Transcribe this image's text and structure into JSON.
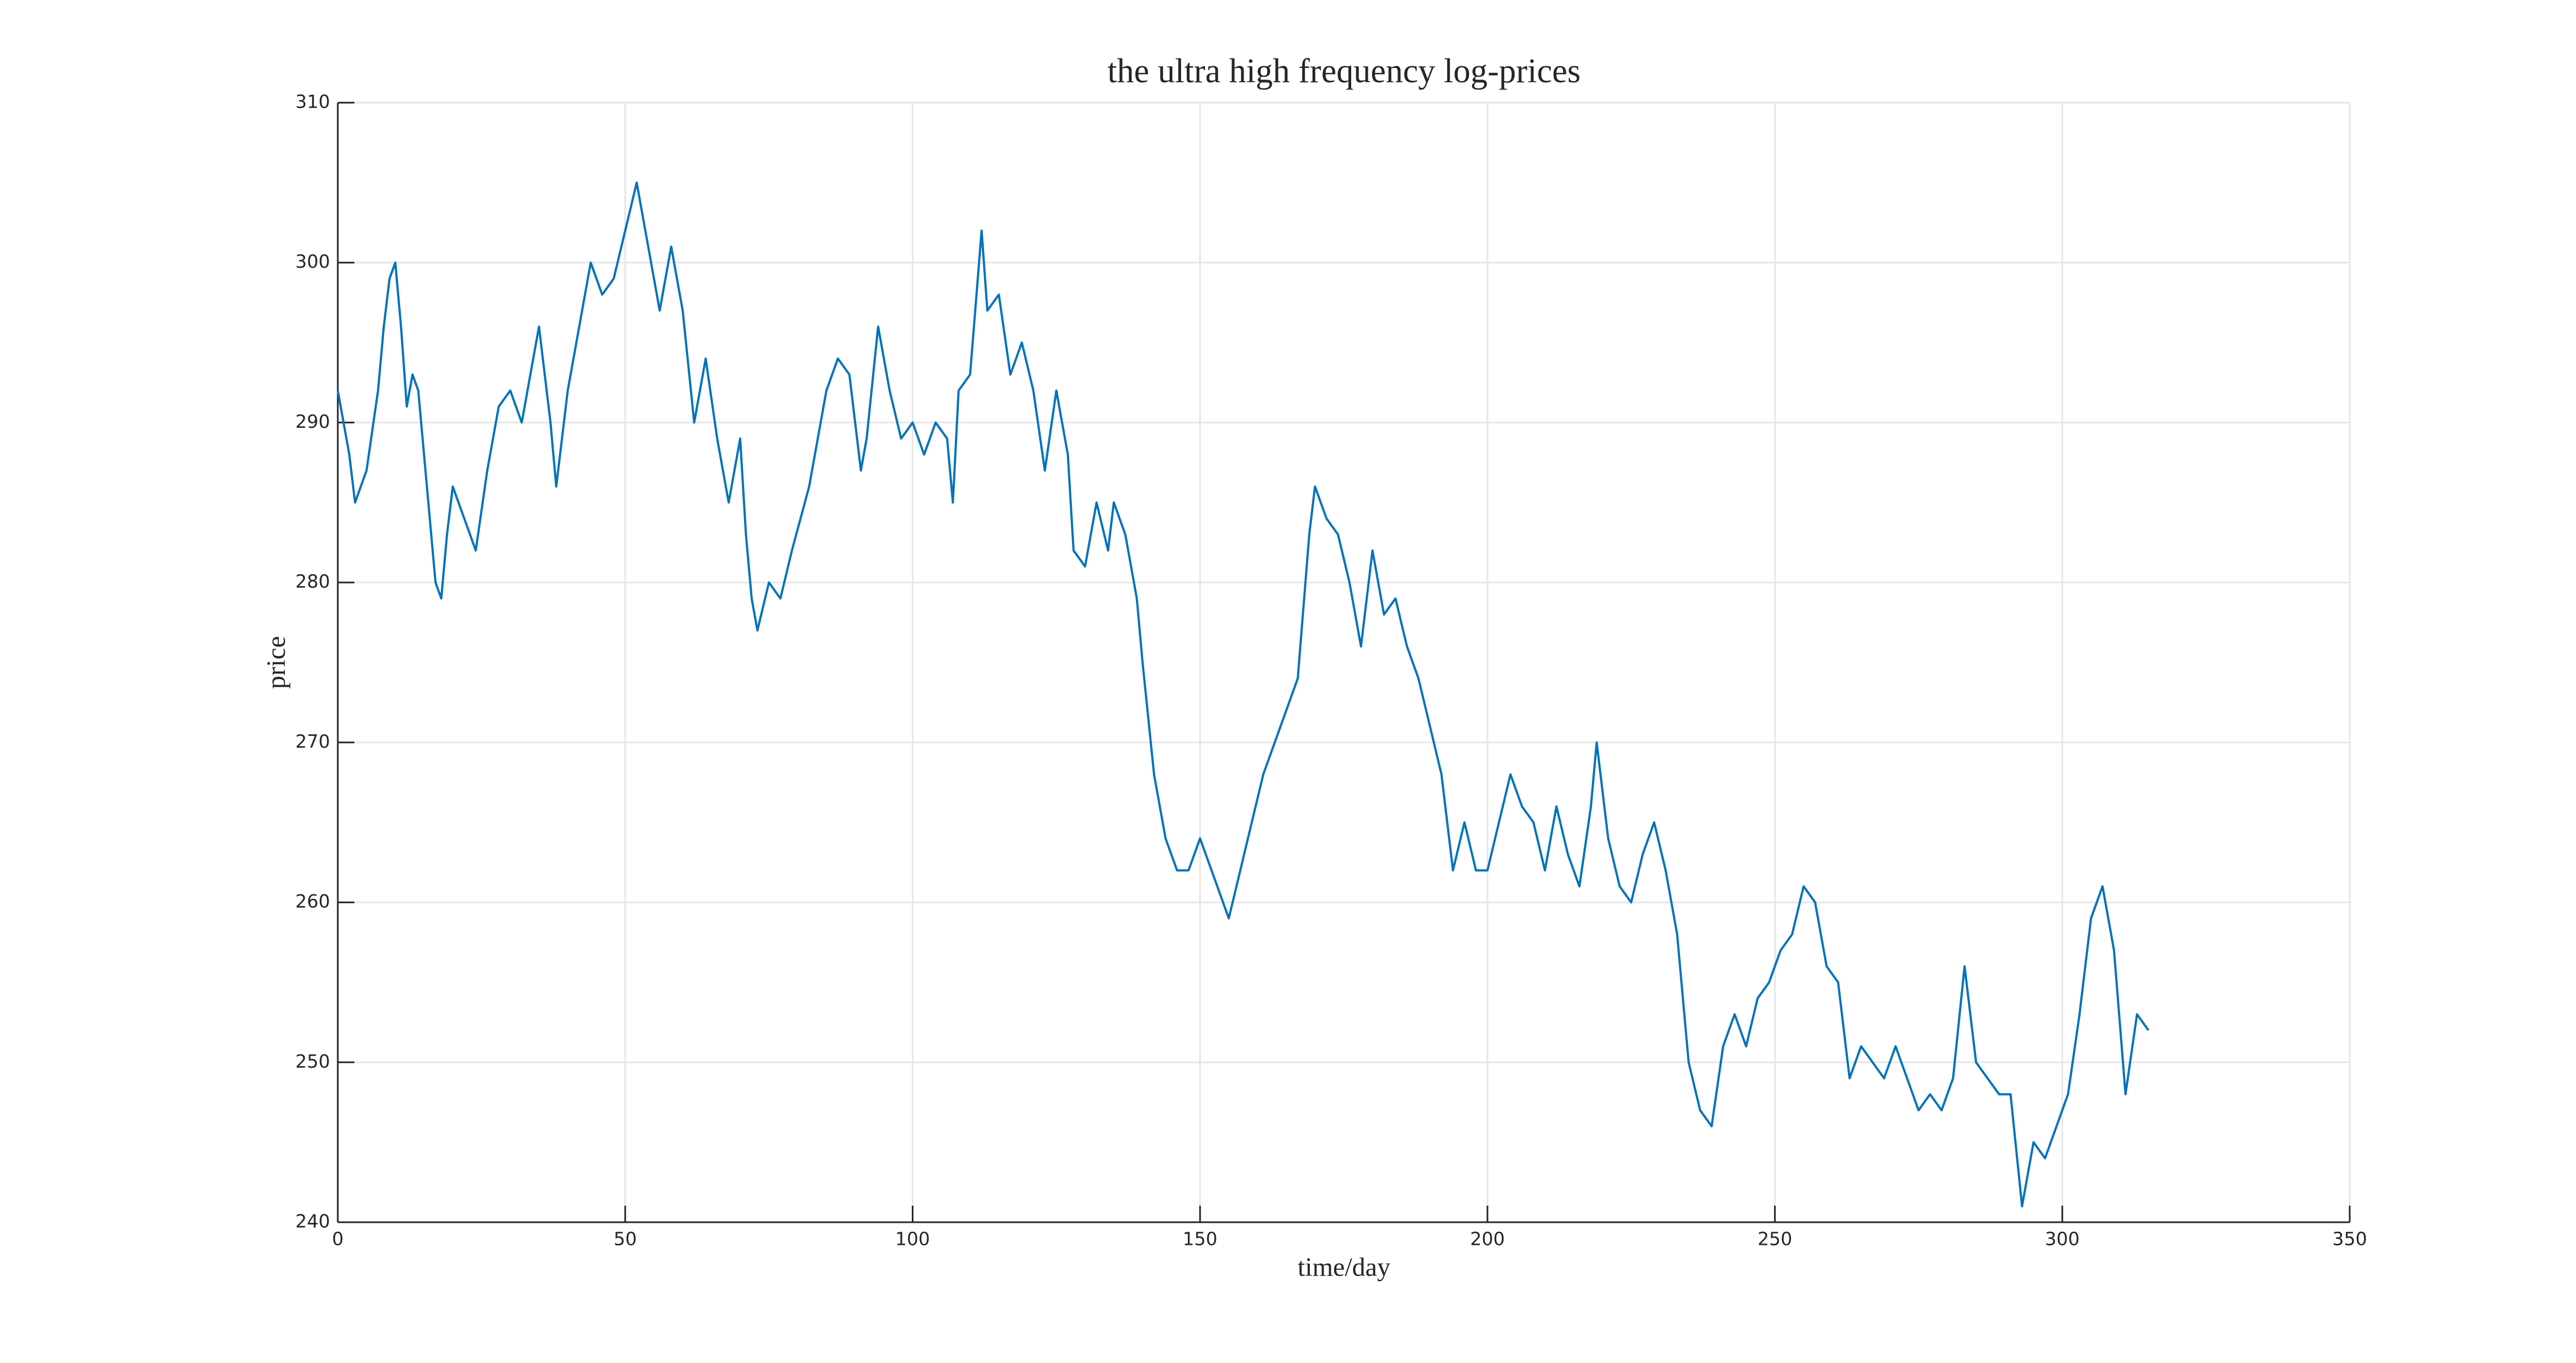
{
  "chart_data": {
    "type": "line",
    "title": "the ultra high frequency log-prices",
    "xlabel": "time/day",
    "ylabel": "price",
    "x": [
      0,
      2,
      3,
      5,
      7,
      8,
      9,
      10,
      11,
      12,
      13,
      14,
      15,
      16,
      17,
      18,
      19,
      20,
      22,
      24,
      26,
      28,
      30,
      32,
      34,
      35,
      37,
      38,
      40,
      42,
      44,
      46,
      48,
      50,
      52,
      54,
      56,
      58,
      60,
      62,
      64,
      66,
      68,
      70,
      71,
      72,
      73,
      75,
      77,
      79,
      82,
      85,
      87,
      89,
      91,
      92,
      94,
      96,
      98,
      100,
      102,
      104,
      106,
      107,
      108,
      110,
      112,
      113,
      115,
      117,
      119,
      121,
      123,
      125,
      127,
      128,
      130,
      132,
      134,
      135,
      137,
      139,
      140,
      142,
      144,
      146,
      148,
      150,
      152,
      154,
      155,
      157,
      159,
      161,
      163,
      165,
      167,
      169,
      170,
      172,
      174,
      176,
      178,
      180,
      182,
      184,
      186,
      188,
      190,
      192,
      194,
      196,
      198,
      200,
      202,
      204,
      206,
      208,
      210,
      212,
      214,
      216,
      218,
      219,
      221,
      223,
      225,
      227,
      229,
      231,
      233,
      235,
      237,
      239,
      241,
      243,
      245,
      247,
      249,
      251,
      253,
      255,
      257,
      259,
      261,
      263,
      265,
      267,
      269,
      271,
      273,
      275,
      277,
      279,
      281,
      283,
      285,
      287,
      289,
      291,
      293,
      295,
      297,
      299,
      301,
      303,
      305,
      307,
      309,
      311,
      313,
      315
    ],
    "values": [
      292,
      288,
      285,
      287,
      292,
      296,
      299,
      300,
      296,
      291,
      293,
      292,
      288,
      284,
      280,
      279,
      283,
      286,
      284,
      282,
      287,
      291,
      292,
      290,
      294,
      296,
      290,
      286,
      292,
      296,
      300,
      298,
      299,
      302,
      305,
      301,
      297,
      301,
      297,
      290,
      294,
      289,
      285,
      289,
      283,
      279,
      277,
      280,
      279,
      282,
      286,
      292,
      294,
      293,
      287,
      289,
      296,
      292,
      289,
      290,
      288,
      290,
      289,
      285,
      292,
      293,
      302,
      297,
      298,
      293,
      295,
      292,
      287,
      292,
      288,
      282,
      281,
      285,
      282,
      285,
      283,
      279,
      275,
      268,
      264,
      262,
      262,
      264,
      262,
      260,
      259,
      262,
      265,
      268,
      270,
      272,
      274,
      283,
      286,
      284,
      283,
      280,
      276,
      282,
      278,
      279,
      276,
      274,
      271,
      268,
      262,
      265,
      262,
      262,
      265,
      268,
      266,
      265,
      262,
      266,
      263,
      261,
      266,
      270,
      264,
      261,
      260,
      263,
      265,
      262,
      258,
      250,
      247,
      246,
      251,
      253,
      251,
      254,
      255,
      257,
      258,
      261,
      260,
      256,
      255,
      249,
      251,
      250,
      249,
      251,
      249,
      247,
      248,
      247,
      249,
      256,
      250,
      249,
      248,
      248,
      241,
      245,
      244,
      246,
      248,
      253,
      259,
      261,
      257,
      248,
      253,
      252
    ],
    "color": "#0072bd",
    "xlim": [
      0,
      350
    ],
    "xticks": [
      0,
      50,
      100,
      150,
      200,
      250,
      300,
      350
    ],
    "ylim": [
      240,
      310
    ],
    "yticks": [
      240,
      250,
      260,
      270,
      280,
      290,
      300,
      310
    ],
    "grid": true
  }
}
